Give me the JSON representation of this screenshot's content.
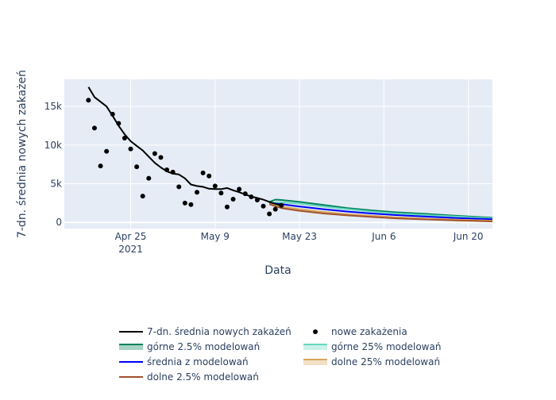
{
  "chart_data": {
    "type": "line",
    "title": "",
    "xlabel": "Data",
    "ylabel": "7-dn. średnia nowych zakażeń",
    "x_is_date": true,
    "xlim": [
      "2021-04-14",
      "2021-06-24"
    ],
    "ylim": [
      -800,
      18500
    ],
    "y_ticks": [
      0,
      5000,
      10000,
      15000
    ],
    "y_tick_labels": [
      "0",
      "5k",
      "10k",
      "15k"
    ],
    "x_ticks": [
      "2021-04-25",
      "2021-05-09",
      "2021-05-23",
      "2021-06-06",
      "2021-06-20"
    ],
    "x_tick_labels": [
      "Apr 25",
      "May 9",
      "May 23",
      "Jun 6",
      "Jun 20"
    ],
    "x_tick_year": "2021",
    "grid": true,
    "legend_position": "bottom",
    "colors": {
      "plot_bg": "#e5ecf6",
      "grid": "#ffffff",
      "avg": "#000000",
      "points": "#000000",
      "upper_2_5": "#00805a",
      "upper_25": "#66d8bf",
      "mean": "#0000ff",
      "lower_2_5": "#a0522d",
      "lower_25": "#d9a65c"
    },
    "series": [
      {
        "name": "7-dn. średnia nowych zakażeń",
        "kind": "line",
        "color": "#000000",
        "x": [
          "2021-04-18",
          "2021-04-19",
          "2021-04-20",
          "2021-04-21",
          "2021-04-22",
          "2021-04-23",
          "2021-04-24",
          "2021-04-25",
          "2021-04-26",
          "2021-04-27",
          "2021-04-28",
          "2021-04-29",
          "2021-04-30",
          "2021-05-01",
          "2021-05-02",
          "2021-05-03",
          "2021-05-04",
          "2021-05-05",
          "2021-05-06",
          "2021-05-07",
          "2021-05-08",
          "2021-05-09",
          "2021-05-10",
          "2021-05-11",
          "2021-05-12",
          "2021-05-13",
          "2021-05-14",
          "2021-05-15",
          "2021-05-16",
          "2021-05-17",
          "2021-05-18",
          "2021-05-19",
          "2021-05-20"
        ],
        "y": [
          17500,
          16200,
          15600,
          15000,
          13800,
          12500,
          11400,
          10500,
          9900,
          9300,
          8500,
          7700,
          7100,
          6600,
          6300,
          6200,
          5700,
          4900,
          4700,
          4600,
          4350,
          4300,
          4300,
          4450,
          4150,
          3900,
          3600,
          3350,
          3150,
          2950,
          2650,
          2400,
          2200
        ]
      },
      {
        "name": "nowe zakażenia",
        "kind": "markers",
        "color": "#000000",
        "x": [
          "2021-04-18",
          "2021-04-19",
          "2021-04-20",
          "2021-04-21",
          "2021-04-22",
          "2021-04-23",
          "2021-04-24",
          "2021-04-25",
          "2021-04-26",
          "2021-04-27",
          "2021-04-28",
          "2021-04-29",
          "2021-04-30",
          "2021-05-01",
          "2021-05-02",
          "2021-05-03",
          "2021-05-04",
          "2021-05-05",
          "2021-05-06",
          "2021-05-07",
          "2021-05-08",
          "2021-05-09",
          "2021-05-10",
          "2021-05-11",
          "2021-05-12",
          "2021-05-13",
          "2021-05-14",
          "2021-05-15",
          "2021-05-16",
          "2021-05-17",
          "2021-05-18",
          "2021-05-19",
          "2021-05-20"
        ],
        "y": [
          15800,
          12200,
          7300,
          9200,
          14000,
          12800,
          10900,
          9500,
          7200,
          3400,
          5700,
          8900,
          8400,
          6800,
          6500,
          4600,
          2500,
          2300,
          3900,
          6400,
          6000,
          4700,
          3800,
          2000,
          3000,
          4300,
          3700,
          3300,
          2900,
          2100,
          1100,
          1700,
          2200
        ]
      },
      {
        "name": "górne 2.5% modelowań",
        "kind": "line",
        "color": "#00805a",
        "x": [
          "2021-05-18",
          "2021-05-19",
          "2021-05-20",
          "2021-05-23",
          "2021-05-27",
          "2021-05-31",
          "2021-06-04",
          "2021-06-08",
          "2021-06-13",
          "2021-06-18",
          "2021-06-24"
        ],
        "y": [
          2650,
          2950,
          2900,
          2650,
          2250,
          1850,
          1550,
          1300,
          1100,
          850,
          600
        ]
      },
      {
        "name": "górne 25% modelowań",
        "kind": "line",
        "color": "#66d8bf",
        "x": [
          "2021-05-18",
          "2021-05-20",
          "2021-05-23",
          "2021-05-27",
          "2021-05-31",
          "2021-06-04",
          "2021-06-08",
          "2021-06-13",
          "2021-06-18",
          "2021-06-24"
        ],
        "y": [
          2550,
          2600,
          2400,
          2050,
          1700,
          1400,
          1150,
          950,
          750,
          500
        ]
      },
      {
        "name": "średnia z modelowań",
        "kind": "line",
        "color": "#0000ff",
        "x": [
          "2021-05-18",
          "2021-05-20",
          "2021-05-23",
          "2021-05-27",
          "2021-05-31",
          "2021-06-04",
          "2021-06-08",
          "2021-06-13",
          "2021-06-18",
          "2021-06-24"
        ],
        "y": [
          2500,
          2350,
          2050,
          1700,
          1400,
          1150,
          950,
          750,
          550,
          400
        ]
      },
      {
        "name": "dolne 25% modelowań",
        "kind": "line",
        "color": "#d9a65c",
        "x": [
          "2021-05-18",
          "2021-05-20",
          "2021-05-23",
          "2021-05-27",
          "2021-05-31",
          "2021-06-04",
          "2021-06-08",
          "2021-06-13",
          "2021-06-18",
          "2021-06-24"
        ],
        "y": [
          2400,
          2050,
          1700,
          1350,
          1050,
          850,
          650,
          480,
          350,
          220
        ]
      },
      {
        "name": "dolne 2.5% modelowań",
        "kind": "line",
        "color": "#a0522d",
        "x": [
          "2021-05-18",
          "2021-05-20",
          "2021-05-23",
          "2021-05-27",
          "2021-05-31",
          "2021-06-04",
          "2021-06-08",
          "2021-06-13",
          "2021-06-18",
          "2021-06-24"
        ],
        "y": [
          2350,
          1850,
          1500,
          1150,
          900,
          700,
          520,
          380,
          250,
          120
        ]
      }
    ],
    "legend": [
      {
        "label": "7-dn. średnia nowych zakażeń",
        "symbol": "line",
        "color": "#000000"
      },
      {
        "label": "nowe zakażenia",
        "symbol": "dot",
        "color": "#000000"
      },
      {
        "label": "górne 2.5% modelowań",
        "symbol": "band",
        "color": "#00805a"
      },
      {
        "label": "górne 25% modelowań",
        "symbol": "band",
        "color": "#66d8bf"
      },
      {
        "label": "średnia z modelowań",
        "symbol": "line",
        "color": "#0000ff"
      },
      {
        "label": "dolne 25% modelowań",
        "symbol": "band",
        "color": "#d9a65c"
      },
      {
        "label": "dolne 2.5% modelowań",
        "symbol": "line",
        "color": "#a0522d"
      }
    ]
  }
}
